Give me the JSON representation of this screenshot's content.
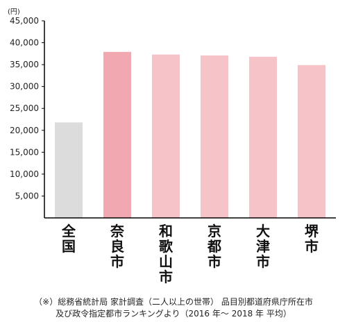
{
  "chart_data": {
    "type": "bar",
    "unit_label": "(円)",
    "categories": [
      "全国",
      "奈良市",
      "和歌山市",
      "京都市",
      "大津市",
      "堺市"
    ],
    "values": [
      21800,
      37900,
      37300,
      37100,
      36800,
      34900
    ],
    "ylim": [
      0,
      45000
    ],
    "yticks": [
      5000,
      10000,
      15000,
      20000,
      25000,
      30000,
      35000,
      40000,
      45000
    ],
    "ytick_labels": [
      "5,000",
      "10,000",
      "15,000",
      "20,000",
      "25,000",
      "30,000",
      "35,000",
      "40,000",
      "45,000"
    ],
    "colors": [
      "#dcdcdc",
      "#f2a8b0",
      "#f6c4c8",
      "#f6c4c8",
      "#f6c4c8",
      "#f6c4c8"
    ],
    "grid": false,
    "legend": "none"
  },
  "source_note": {
    "line1": "（※）総務省統計局 家計調査（二人以上の世帯） 品目別都道府県庁所在市",
    "line2": "及び政令指定都市ランキングより（2016 年～ 2018 年 平均）"
  }
}
